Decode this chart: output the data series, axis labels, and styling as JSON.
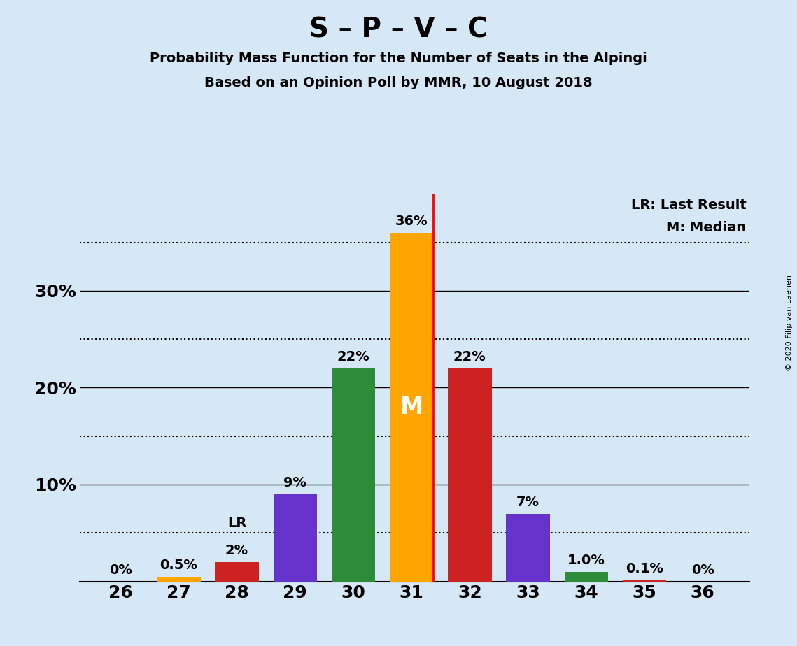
{
  "title": "S – P – V – C",
  "subtitle1": "Probability Mass Function for the Number of Seats in the Alpingi",
  "subtitle2": "Based on an Opinion Poll by MMR, 10 August 2018",
  "copyright": "© 2020 Filip van Laenen",
  "seats": [
    26,
    27,
    28,
    29,
    30,
    31,
    32,
    33,
    34,
    35,
    36
  ],
  "values": [
    0.0,
    0.5,
    2.0,
    9.0,
    22.0,
    36.0,
    22.0,
    7.0,
    1.0,
    0.1,
    0.0
  ],
  "labels": [
    "0%",
    "0.5%",
    "2%",
    "9%",
    "22%",
    "36%",
    "22%",
    "7%",
    "1.0%",
    "0.1%",
    "0%"
  ],
  "colors": [
    "#FFA500",
    "#FFA500",
    "#CC2222",
    "#6633CC",
    "#2E8B3A",
    "#FFA500",
    "#CC2222",
    "#6633CC",
    "#2E8B3A",
    "#CC2222",
    "#FFA500"
  ],
  "last_result_seat": 31,
  "median_seat": 31,
  "lr_label_seat": 28,
  "m_label_seat": 31,
  "background_color": "#D6E8F5",
  "bar_width": 0.75,
  "ylim": [
    0,
    40
  ],
  "dotted_yticks": [
    5,
    15,
    25,
    35
  ],
  "solid_yticks": [
    10,
    20,
    30
  ],
  "legend_lr": "LR: Last Result",
  "legend_m": "M: Median"
}
